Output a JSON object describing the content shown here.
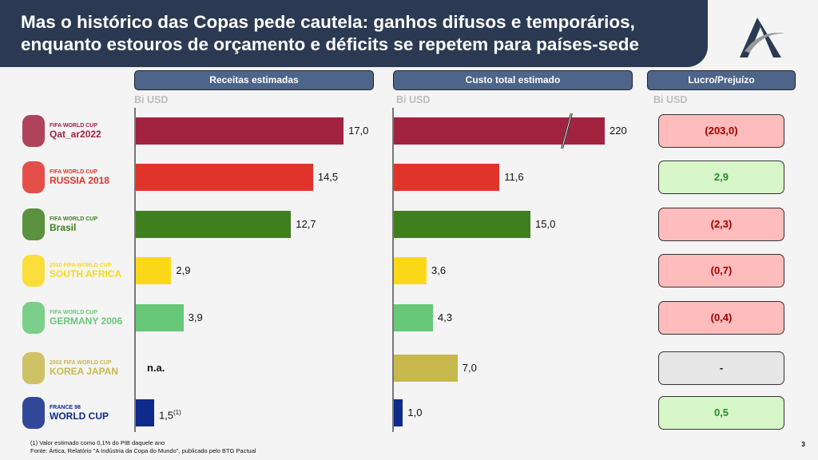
{
  "title_line1": "Mas o histórico das Copas pede cautela: ganhos difusos e temporários,",
  "title_line2": "enquanto estouros de orçamento e déficits se repetem para países-sede",
  "logo_icon": "artica-logo",
  "page_number": "3",
  "footnote": "(1) Valor estimado como 0,1% do PIB daquele ano",
  "source": "Fonte: Ártica, Relatório \"A Indústria da Copa do Mundo\", publicado pelo BTG Pactual",
  "chart_data": {
    "type": "bar",
    "unit": "Bi USD",
    "categories": [
      {
        "line1": "FIFA WORLD CUP",
        "line2": "Qat_ar2022",
        "color": "#a12340"
      },
      {
        "line1": "FIFA WORLD CUP",
        "line2": "RUSSIA 2018",
        "color": "#e0332a"
      },
      {
        "line1": "FIFA WORLD CUP",
        "line2": "Brasil",
        "color": "#3f7f1f"
      },
      {
        "line1": "2010 FIFA WORLD CUP",
        "line2": "SOUTH AFRICA",
        "color": "#fcd918"
      },
      {
        "line1": "FIFA WORLD CUP",
        "line2": "GERMANY 2006",
        "color": "#66c878"
      },
      {
        "line1": "2002 FIFA WORLD CUP",
        "line2": "KOREA JAPAN",
        "color": "#c7b84e"
      },
      {
        "line1": "FRANCE 98",
        "line2": "WORLD CUP",
        "color": "#0f2a8a"
      }
    ],
    "revenue": {
      "title": "Receitas estimadas",
      "values": [
        17.0,
        14.5,
        12.7,
        2.9,
        3.9,
        null,
        1.5
      ],
      "labels": [
        "17,0",
        "14,5",
        "12,7",
        "2,9",
        "3,9",
        "n.a.",
        "1,5"
      ],
      "note_marker": "(1)"
    },
    "cost": {
      "title": "Custo total estimado",
      "values": [
        220,
        11.6,
        15.0,
        3.6,
        4.3,
        7.0,
        1.0
      ],
      "labels": [
        "220",
        "11,6",
        "15,0",
        "3,6",
        "4,3",
        "7,0",
        "1,0"
      ],
      "axis_break": true
    },
    "profit": {
      "title": "Lucro/Prejuízo",
      "values": [
        -203.0,
        2.9,
        -2.3,
        -0.7,
        -0.4,
        null,
        0.5
      ],
      "labels": [
        "(203,0)",
        "2,9",
        "(2,3)",
        "(0,7)",
        "(0,4)",
        "-",
        "0,5"
      ]
    },
    "colors": {
      "loss_bg": "#ffbcbc",
      "loss_text": "#a00000",
      "gain_bg": "#d7f7c8",
      "gain_text": "#2a8a2a",
      "na_bg": "#e6e6e6"
    }
  }
}
